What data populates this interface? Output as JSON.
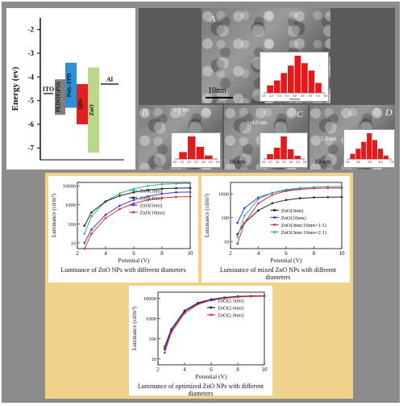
{
  "energy_diagram": {
    "ylabel": "Energy (ev)",
    "ticks": [
      "-2",
      "-3",
      "-4",
      "-5",
      "-6",
      "-7"
    ],
    "layers": [
      {
        "name": "ITO",
        "color": "#ffffff"
      },
      {
        "name": "PEDOT:PSS",
        "color": "#7f7f7f"
      },
      {
        "name": "Poly-TPD",
        "color": "#2f8fd6"
      },
      {
        "name": "QDs",
        "color": "#e02020"
      },
      {
        "name": "ZnO",
        "color": "#b9d88a"
      },
      {
        "name": "Al",
        "color": "#ffffff"
      }
    ]
  },
  "tem": {
    "A": {
      "label": "A",
      "scale": "10nm",
      "hist": [
        3,
        5,
        8,
        11,
        15,
        12,
        9,
        4
      ],
      "xlabel": "Size(nm)",
      "ticks": [
        "2.0",
        "2.5",
        "3.0",
        "3.5",
        "4.0",
        "4.5",
        "5.0",
        "5.5",
        "6.0"
      ]
    },
    "B": {
      "label": "B",
      "note": "~2.9 nm",
      "scale": "10 nm",
      "hist": [
        4,
        13,
        7,
        2
      ],
      "ticks": [
        "2.0",
        "2.5",
        "3.0",
        "3.5",
        "4.0",
        "4.5",
        "5.0"
      ]
    },
    "C": {
      "label": "C",
      "note": "~4.0 nm",
      "scale": "10 nm",
      "hist": [
        3,
        7,
        14,
        6,
        2
      ],
      "ticks": [
        "2.0",
        "2.5",
        "3.0",
        "3.5",
        "4.0",
        "4.5",
        "5.0"
      ]
    },
    "D": {
      "label": "D",
      "note": "5.0 nm",
      "scale": "10 nm",
      "hist": [
        3,
        6,
        10,
        15,
        11,
        6,
        2
      ],
      "ticks": [
        "3.0",
        "4.0",
        "5.0",
        "6.0",
        "7.0"
      ]
    }
  },
  "chart_data": [
    {
      "type": "line",
      "title": "",
      "xlabel": "Potential (V)",
      "ylabel": "Luminance (cd/m²)",
      "xlim": [
        2,
        10
      ],
      "ylim": [
        5,
        15000
      ],
      "yscale": "log",
      "xticks": [
        "2",
        "4",
        "6",
        "8",
        "10"
      ],
      "yticks": [
        "10",
        "100",
        "1000",
        "10000"
      ],
      "legend_position": "top-right",
      "series": [
        {
          "name": "ZnO(3nm)",
          "color": "#35b39a",
          "x": [
            2.5,
            3,
            4,
            5,
            6,
            7,
            8,
            9,
            10
          ],
          "y": [
            30,
            250,
            1500,
            4000,
            7000,
            10000,
            12000,
            13000,
            13500
          ]
        },
        {
          "name": "ZnO(4nm)",
          "color": "#222222",
          "x": [
            2.5,
            3,
            4,
            5,
            6,
            7,
            8,
            9,
            10
          ],
          "y": [
            80,
            400,
            1500,
            3000,
            4500,
            6000,
            7000,
            7500,
            7700
          ]
        },
        {
          "name": "ZnO(5nm)",
          "color": "#3b3bd6",
          "x": [
            2.5,
            3,
            4,
            5,
            6,
            7,
            8,
            9,
            10
          ],
          "y": [
            10,
            50,
            300,
            900,
            1800,
            2800,
            3800,
            4500,
            4700
          ]
        },
        {
          "name": "ZnO(10nm)",
          "color": "#e03030",
          "x": [
            2.5,
            3,
            4,
            5,
            6,
            7,
            8,
            9,
            10
          ],
          "y": [
            5,
            30,
            200,
            600,
            1200,
            1800,
            2300,
            2600,
            2700
          ]
        }
      ],
      "caption": "Luminance of ZnO NPs with different diameters"
    },
    {
      "type": "line",
      "title": "",
      "xlabel": "Potential (V)",
      "ylabel": "Luminance (cd/m²)",
      "xlim": [
        2,
        10
      ],
      "ylim": [
        5,
        3000
      ],
      "yscale": "log",
      "xticks": [
        "2",
        "4",
        "6",
        "8",
        "10"
      ],
      "yticks": [
        "10",
        "100",
        "1000"
      ],
      "legend_position": "center-right",
      "series": [
        {
          "name": "ZnO(3nm)",
          "color": "#222222",
          "x": [
            2.5,
            3,
            4,
            5,
            6,
            7,
            8,
            9,
            10
          ],
          "y": [
            20,
            60,
            200,
            400,
            550,
            650,
            700,
            720,
            730
          ]
        },
        {
          "name": "ZnO(10nm)",
          "color": "#3b3bd6",
          "x": [
            2.5,
            3,
            4,
            5,
            6,
            7,
            8,
            9,
            10
          ],
          "y": [
            60,
            250,
            700,
            1100,
            1400,
            1600,
            1700,
            1750,
            1780
          ]
        },
        {
          "name": "ZnO(3nm:10nm=1:1)",
          "color": "#e03030",
          "x": [
            2.5,
            3,
            4,
            5,
            6,
            7,
            8,
            9,
            10
          ],
          "y": [
            8,
            60,
            400,
            900,
            1300,
            1550,
            1700,
            1750,
            1770
          ]
        },
        {
          "name": "ZnO(3nm:10nm=2:1)",
          "color": "#35b39a",
          "x": [
            2.5,
            3,
            4,
            5,
            6,
            7,
            8,
            9,
            10
          ],
          "y": [
            15,
            120,
            600,
            1100,
            1500,
            1750,
            1900,
            2000,
            2050
          ]
        }
      ],
      "caption": "Luminance of mixed ZnO NPs with different diameters"
    },
    {
      "type": "line",
      "title": "",
      "xlabel": "Potential (V)",
      "ylabel": "Luminance (cd/m²)",
      "xlim": [
        2,
        10
      ],
      "ylim": [
        5,
        20000
      ],
      "yscale": "log",
      "xticks": [
        "2",
        "4",
        "6",
        "8",
        "10"
      ],
      "yticks": [
        "10",
        "100",
        "1000",
        "10000"
      ],
      "legend_position": "top-right",
      "series": [
        {
          "name": "ZnO(2.5nm)",
          "color": "#3b3bd6",
          "x": [
            2.5,
            3,
            4,
            5,
            6,
            7,
            8,
            9,
            10
          ],
          "y": [
            40,
            300,
            2500,
            6000,
            9000,
            11000,
            12500,
            13000,
            13200
          ]
        },
        {
          "name": "ZnO(2.6nm)",
          "color": "#222222",
          "x": [
            2.5,
            3,
            4,
            5,
            6,
            7,
            8,
            9,
            10
          ],
          "y": [
            30,
            250,
            2200,
            5500,
            8500,
            10500,
            12000,
            12800,
            13000
          ]
        },
        {
          "name": "ZnO(2.9nm)",
          "color": "#e03030",
          "x": [
            2.5,
            3,
            4,
            5,
            6,
            7,
            8,
            9,
            10
          ],
          "y": [
            20,
            200,
            1800,
            5000,
            8000,
            10000,
            11500,
            12300,
            12600
          ]
        }
      ],
      "caption": "Luminance of optimized ZnO NPs with different diameters"
    }
  ]
}
